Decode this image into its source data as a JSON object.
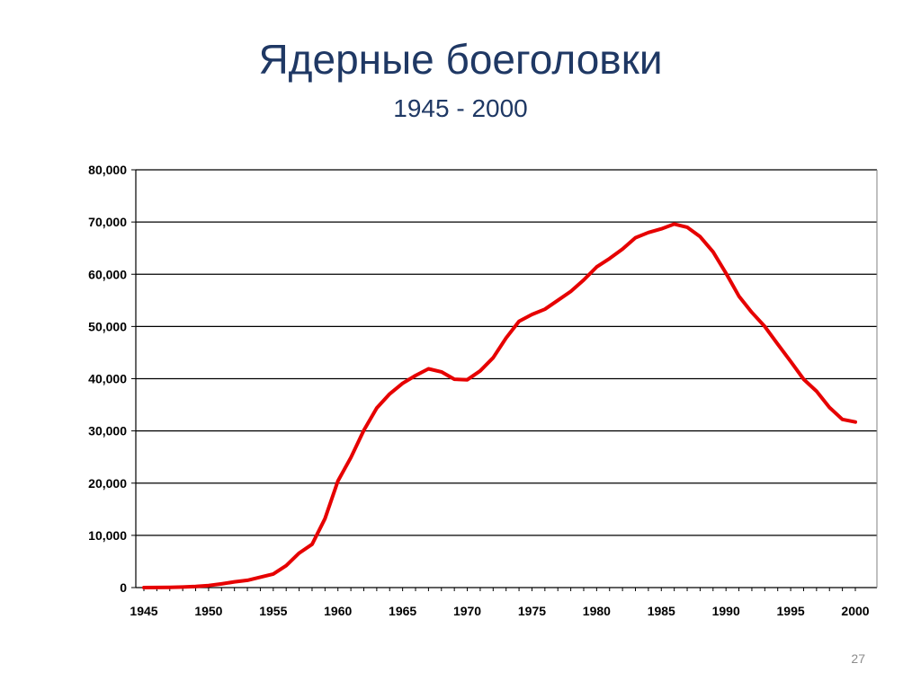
{
  "slide": {
    "title": "Ядерные боеголовки",
    "subtitle": "1945 - 2000",
    "page_number": "27"
  },
  "colors": {
    "title": "#1f3864",
    "series": "#e60000",
    "grid": "#000000"
  },
  "chart_data": {
    "type": "line",
    "title": "",
    "xlabel": "",
    "ylabel": "",
    "xlim": [
      1945,
      2000
    ],
    "ylim": [
      0,
      80000
    ],
    "x_ticks": [
      1945,
      1950,
      1955,
      1960,
      1965,
      1970,
      1975,
      1980,
      1985,
      1990,
      1995,
      2000
    ],
    "x_tick_labels": [
      "1945",
      "1950",
      "1955",
      "1960",
      "1965",
      "1970",
      "1975",
      "1980",
      "1985",
      "1990",
      "1995",
      "2000"
    ],
    "y_ticks": [
      0,
      10000,
      20000,
      30000,
      40000,
      50000,
      60000,
      70000,
      80000
    ],
    "y_tick_labels": [
      "0",
      "10,000",
      "20,000",
      "30,000",
      "40,000",
      "50,000",
      "60,000",
      "70,000",
      "80,000"
    ],
    "grid": "horizontal",
    "legend": "none",
    "series": [
      {
        "color": "#e60000",
        "x": [
          1945,
          1946,
          1947,
          1948,
          1949,
          1950,
          1951,
          1952,
          1953,
          1954,
          1955,
          1956,
          1957,
          1958,
          1959,
          1960,
          1961,
          1962,
          1963,
          1964,
          1965,
          1966,
          1967,
          1968,
          1969,
          1970,
          1971,
          1972,
          1973,
          1974,
          1975,
          1976,
          1977,
          1978,
          1979,
          1980,
          1981,
          1982,
          1983,
          1984,
          1985,
          1986,
          1987,
          1988,
          1989,
          1990,
          1991,
          1992,
          1993,
          1994,
          1995,
          1996,
          1997,
          1998,
          1999,
          2000
        ],
        "values": [
          6,
          11,
          32,
          110,
          200,
          400,
          700,
          1100,
          1400,
          2000,
          2600,
          4200,
          6600,
          8300,
          13200,
          20400,
          24900,
          30100,
          34400,
          37100,
          39100,
          40600,
          41900,
          41300,
          39900,
          39800,
          41500,
          44000,
          47800,
          51000,
          52300,
          53300,
          55000,
          56700,
          58900,
          61400,
          63000,
          64800,
          67000,
          68000,
          68700,
          69600,
          69000,
          67200,
          64300,
          60200,
          55800,
          52700,
          50000,
          46600,
          43300,
          39900,
          37600,
          34500,
          32200,
          31700
        ]
      }
    ]
  }
}
